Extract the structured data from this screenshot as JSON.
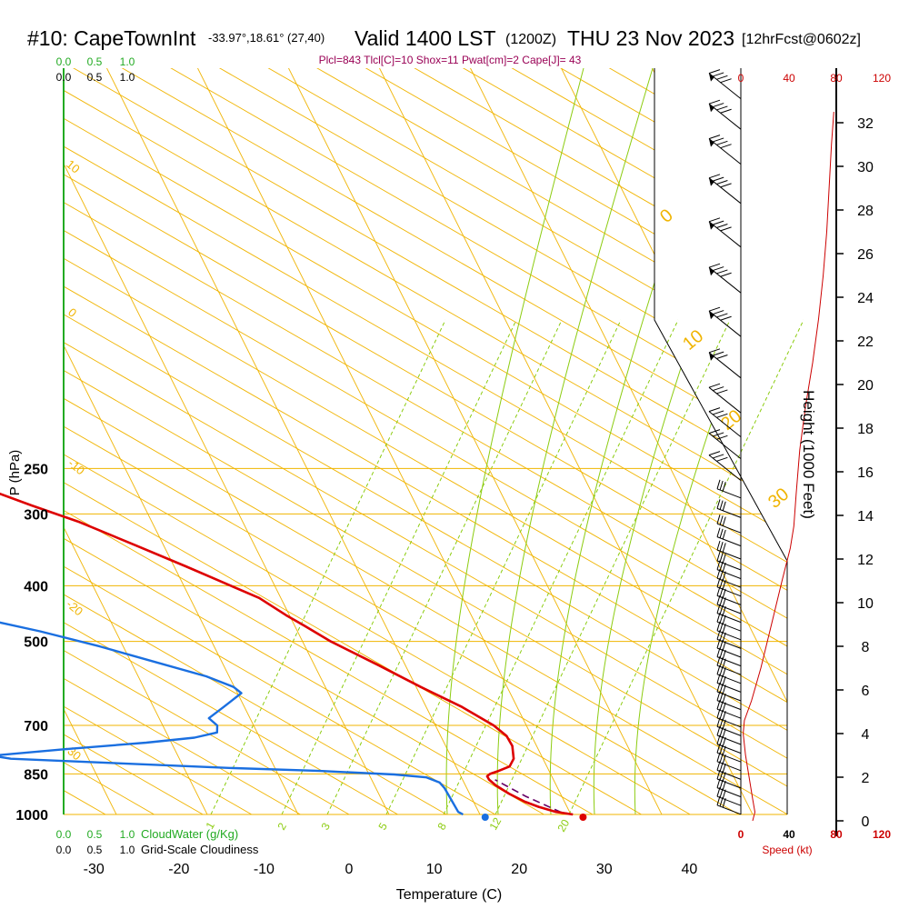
{
  "header": {
    "station": "#10: CapeTownInt",
    "coords": "-33.97°,18.61° (27,40)",
    "valid": "Valid 1400 LST",
    "utc": "(1200Z)",
    "date": "THU 23 Nov 2023",
    "forecast": "[12hrFcst@0602z]"
  },
  "indices": "Plcl=843 Tlcl[C]=10 Shox=11 Pwat[cm]=2 Cape[J]= 43",
  "colors": {
    "temperature": "#dd0000",
    "dewpoint": "#1a6fe0",
    "isotherm": "#f0b400",
    "dry_adiabat": "#f0b400",
    "moist_adiabat": "#8ccc10",
    "mixing_ratio": "#8ccc10",
    "cloud": "#22aa22",
    "indices_text": "#990055",
    "speed": "#cc0000"
  },
  "chart_data": {
    "type": "line",
    "title": "Skew-T log-P sounding",
    "xlabel": "Temperature (C)",
    "ylabel": "P (hPa)",
    "y2label": "Height (1000 Feet)",
    "x_ticks": [
      "-30",
      "-20",
      "-10",
      "0",
      "10",
      "20",
      "30",
      "40"
    ],
    "p_ticks": [
      "250",
      "300",
      "400",
      "500",
      "700",
      "850",
      "1000"
    ],
    "height_ticks": [
      "0",
      "2",
      "4",
      "6",
      "8",
      "10",
      "12",
      "14",
      "16",
      "18",
      "20",
      "22",
      "24",
      "26",
      "28",
      "30",
      "32"
    ],
    "speed_ticks_top": [
      "0",
      "40",
      "80",
      "120"
    ],
    "speed_ticks_bottom": [
      "0",
      "40",
      "80",
      "120"
    ],
    "speed_label": "Speed (kt)",
    "cloud_top_ticks": [
      "0.0",
      "0.5",
      "1.0"
    ],
    "cloud_top_ticks2": [
      "0.0",
      "0.5",
      "1.0"
    ],
    "cloud_water_label": "CloudWater (g/Kg)",
    "cloudiness_label": "Grid-Scale Cloudiness",
    "cloud_bottom_ticks": [
      "0.0",
      "0.5",
      "1.0"
    ],
    "cloud_bottom_ticks2": [
      "0.0",
      "0.5",
      "1.0"
    ],
    "isotherm_labels": [
      "0",
      "10",
      "20",
      "30"
    ],
    "dry_adiabat_labels": [
      "10",
      "0",
      "-10",
      "-20",
      "-30"
    ],
    "mixing_ratio_labels": [
      "1",
      "2",
      "3",
      "5",
      "8",
      "12",
      "20"
    ],
    "series": [
      {
        "name": "Temperature",
        "points": [
          {
            "p": 1000,
            "t": 26.3
          },
          {
            "p": 990,
            "t": 24.5
          },
          {
            "p": 970,
            "t": 22.8
          },
          {
            "p": 950,
            "t": 21.5
          },
          {
            "p": 920,
            "t": 20.2
          },
          {
            "p": 890,
            "t": 19.2
          },
          {
            "p": 870,
            "t": 18.8
          },
          {
            "p": 858,
            "t": 18.8
          },
          {
            "p": 850,
            "t": 19.3
          },
          {
            "p": 840,
            "t": 20.5
          },
          {
            "p": 825,
            "t": 22.1
          },
          {
            "p": 800,
            "t": 23.1
          },
          {
            "p": 760,
            "t": 23.8
          },
          {
            "p": 730,
            "t": 23.8
          },
          {
            "p": 700,
            "t": 23.0
          },
          {
            "p": 650,
            "t": 20.5
          },
          {
            "p": 600,
            "t": 17.0
          },
          {
            "p": 550,
            "t": 13.5
          },
          {
            "p": 500,
            "t": 9.5
          },
          {
            "p": 470,
            "t": 7.5
          },
          {
            "p": 450,
            "t": 6.0
          },
          {
            "p": 420,
            "t": 4.0
          },
          {
            "p": 400,
            "t": 1.5
          },
          {
            "p": 370,
            "t": -2.5
          },
          {
            "p": 340,
            "t": -7.0
          },
          {
            "p": 310,
            "t": -12.0
          },
          {
            "p": 290,
            "t": -16.5
          },
          {
            "p": 270,
            "t": -21.0
          }
        ]
      },
      {
        "name": "Dewpoint",
        "points": [
          {
            "p": 1000,
            "t": 13.4
          },
          {
            "p": 990,
            "t": 13.0
          },
          {
            "p": 950,
            "t": 13.0
          },
          {
            "p": 900,
            "t": 13.0
          },
          {
            "p": 880,
            "t": 12.8
          },
          {
            "p": 862,
            "t": 11.6
          },
          {
            "p": 852,
            "t": 8.0
          },
          {
            "p": 840,
            "t": -0.5
          },
          {
            "p": 830,
            "t": -11.0
          },
          {
            "p": 800,
            "t": -36.0
          },
          {
            "p": 790,
            "t": -38.0
          },
          {
            "p": 770,
            "t": -29.0
          },
          {
            "p": 750,
            "t": -19.0
          },
          {
            "p": 735,
            "t": -13.0
          },
          {
            "p": 720,
            "t": -10.0
          },
          {
            "p": 700,
            "t": -9.5
          },
          {
            "p": 680,
            "t": -10.0
          },
          {
            "p": 650,
            "t": -7.5
          },
          {
            "p": 615,
            "t": -4.5
          },
          {
            "p": 600,
            "t": -5.0
          },
          {
            "p": 575,
            "t": -7.5
          },
          {
            "p": 540,
            "t": -13.0
          },
          {
            "p": 510,
            "t": -18.0
          },
          {
            "p": 480,
            "t": -24.0
          },
          {
            "p": 460,
            "t": -29.0
          },
          {
            "p": 440,
            "t": -37.0
          },
          {
            "p": 400,
            "t": -50.0
          },
          {
            "p": 370,
            "t": -53.0
          },
          {
            "p": 350,
            "t": -55.5
          },
          {
            "p": 310,
            "t": -59.0
          },
          {
            "p": 290,
            "t": -62.0
          },
          {
            "p": 270,
            "t": -66.5
          }
        ]
      },
      {
        "name": "Parcel",
        "points": [
          {
            "p": 1000,
            "t": 26.3
          },
          {
            "p": 990,
            "t": 25.0
          },
          {
            "p": 930,
            "t": 22.0
          },
          {
            "p": 870,
            "t": 19.5
          }
        ]
      }
    ],
    "surface_temp": 27.5,
    "surface_dew": 16.0,
    "ylim": [
      250,
      1000
    ],
    "xlim_bottom": [
      -35,
      45
    ],
    "height_range_kft": [
      0,
      33
    ],
    "speed_profile": [
      {
        "h": 0,
        "s": 10
      },
      {
        "h": 0.4,
        "s": 12
      },
      {
        "h": 1,
        "s": 10
      },
      {
        "h": 2,
        "s": 7
      },
      {
        "h": 3,
        "s": 4
      },
      {
        "h": 4,
        "s": 2
      },
      {
        "h": 4.6,
        "s": 3
      },
      {
        "h": 5.5,
        "s": 9
      },
      {
        "h": 7,
        "s": 17
      },
      {
        "h": 9,
        "s": 26
      },
      {
        "h": 11,
        "s": 35
      },
      {
        "h": 12.5,
        "s": 42
      },
      {
        "h": 13.5,
        "s": 45
      },
      {
        "h": 15,
        "s": 47
      },
      {
        "h": 17,
        "s": 50
      },
      {
        "h": 19,
        "s": 55
      },
      {
        "h": 21,
        "s": 61
      },
      {
        "h": 23,
        "s": 66
      },
      {
        "h": 25,
        "s": 70
      },
      {
        "h": 27,
        "s": 73
      },
      {
        "h": 29,
        "s": 75
      },
      {
        "h": 31,
        "s": 77
      },
      {
        "h": 32.5,
        "s": 79
      }
    ],
    "wind_barbs_kft": [
      0.3,
      0.7,
      1.1,
      1.5,
      1.9,
      2.3,
      2.7,
      3.1,
      3.5,
      3.9,
      4.3,
      4.7,
      5.1,
      5.5,
      5.9,
      6.3,
      6.7,
      7.1,
      7.5,
      7.9,
      8.3,
      8.7,
      9.1,
      9.5,
      9.9,
      10.3,
      10.7,
      11.1,
      11.5,
      12.0,
      12.6,
      13.2,
      13.9,
      14.8,
      15.6,
      16.6,
      17.6,
      18.7,
      20.3,
      22.2,
      24.2,
      26.3,
      28.3,
      30.1,
      31.7,
      33.1
    ]
  }
}
